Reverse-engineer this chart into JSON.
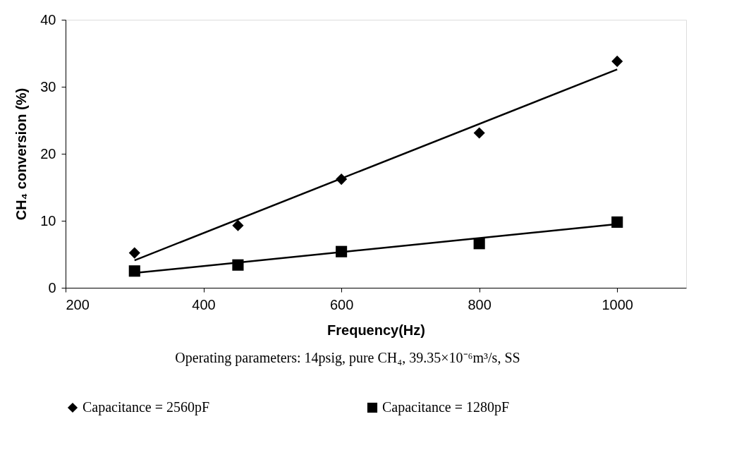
{
  "chart_data": {
    "type": "scatter",
    "xlabel": "Frequency(Hz)",
    "ylabel": "CH₄ conversion (%)",
    "xlim": [
      200,
      1100
    ],
    "xticks": [
      200,
      400,
      600,
      800,
      1000
    ],
    "ylim": [
      0,
      40
    ],
    "yticks": [
      0,
      10,
      20,
      30,
      40
    ],
    "grid": false,
    "legend": "bottom",
    "annotations": [
      "Operating parameters: 14psig, pure CH₄, 39.35×10⁻⁶m³/s, SS"
    ],
    "series": [
      {
        "name": "Capacitance = 2560pF",
        "marker": "diamond",
        "color": "#000000",
        "x": [
          300,
          450,
          600,
          800,
          1000
        ],
        "values": [
          5.2,
          9.3,
          16.2,
          23.1,
          33.8
        ]
      },
      {
        "name": "Capacitance = 1280pF",
        "marker": "square",
        "color": "#000000",
        "x": [
          300,
          450,
          600,
          800,
          1000
        ],
        "values": [
          2.5,
          3.4,
          5.4,
          6.6,
          9.8
        ]
      },
      {
        "type": "line",
        "color": "#000000",
        "x": [
          300,
          1000
        ],
        "values": [
          4.1,
          32.6
        ]
      },
      {
        "type": "line",
        "color": "#000000",
        "x": [
          300,
          1000
        ],
        "values": [
          2.2,
          9.5
        ]
      }
    ]
  }
}
